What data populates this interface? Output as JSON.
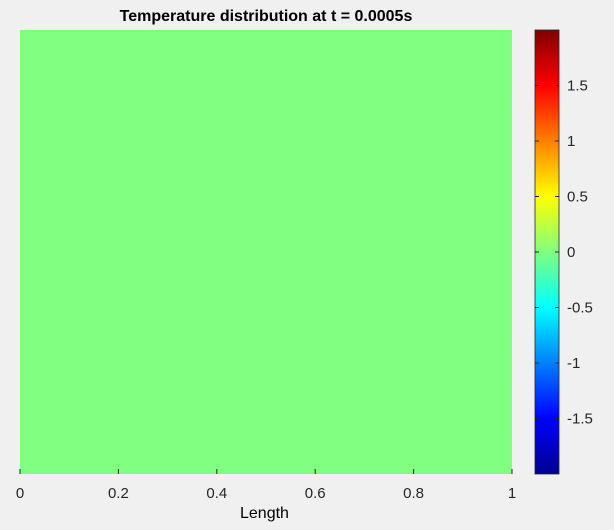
{
  "chart_data": {
    "type": "heatmap",
    "title": "Temperature distribution at t = 0.0005s",
    "xlabel": "Length",
    "ylabel": "",
    "x_ticks": [
      "0",
      "0.2",
      "0.4",
      "0.6",
      "0.8",
      "1"
    ],
    "xlim": [
      0,
      1
    ],
    "y_ticks": [],
    "values": [
      [
        0
      ]
    ],
    "colorbar": {
      "colormap": "jet",
      "clim": [
        -2,
        2
      ],
      "ticks": [
        1.5,
        1,
        0.5,
        0,
        -0.5,
        -1,
        -1.5
      ],
      "tick_labels": [
        "1.5",
        "1",
        "0.5",
        "0",
        "-0.5",
        "-1",
        "-1.5"
      ]
    },
    "field_color": "#80FF80"
  }
}
